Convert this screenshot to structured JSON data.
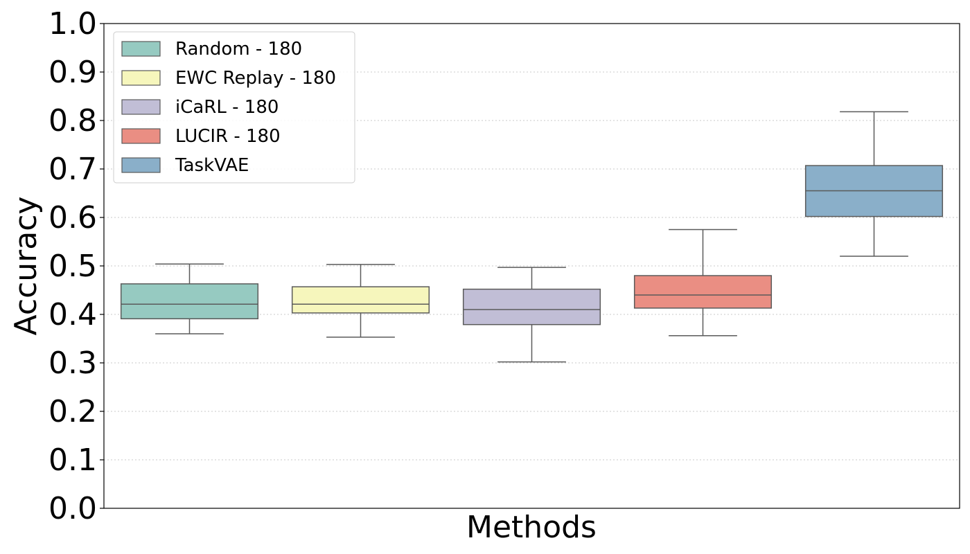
{
  "chart_data": {
    "type": "box",
    "title": "",
    "xlabel": "Methods",
    "ylabel": "Accuracy",
    "ylim": [
      0.0,
      1.0
    ],
    "yticks": [
      "0.0",
      "0.1",
      "0.2",
      "0.3",
      "0.4",
      "0.5",
      "0.6",
      "0.7",
      "0.8",
      "0.9",
      "1.0"
    ],
    "grid": "y-dotted",
    "legend_position": "top-left",
    "series": [
      {
        "name": "Random - 180",
        "color": "#96cac1",
        "whisker_low": 0.36,
        "q1": 0.391,
        "median": 0.421,
        "q3": 0.463,
        "whisker_high": 0.504
      },
      {
        "name": "EWC Replay - 180",
        "color": "#f6f6bc",
        "whisker_low": 0.353,
        "q1": 0.403,
        "median": 0.421,
        "q3": 0.457,
        "whisker_high": 0.503
      },
      {
        "name": "iCaRL - 180",
        "color": "#c1bed6",
        "whisker_low": 0.302,
        "q1": 0.379,
        "median": 0.41,
        "q3": 0.452,
        "whisker_high": 0.497
      },
      {
        "name": "LUCIR - 180",
        "color": "#ea8e83",
        "whisker_low": 0.356,
        "q1": 0.413,
        "median": 0.44,
        "q3": 0.48,
        "whisker_high": 0.575
      },
      {
        "name": "TaskVAE",
        "color": "#8aafc9",
        "whisker_low": 0.52,
        "q1": 0.602,
        "median": 0.655,
        "q3": 0.707,
        "whisker_high": 0.818
      }
    ]
  }
}
